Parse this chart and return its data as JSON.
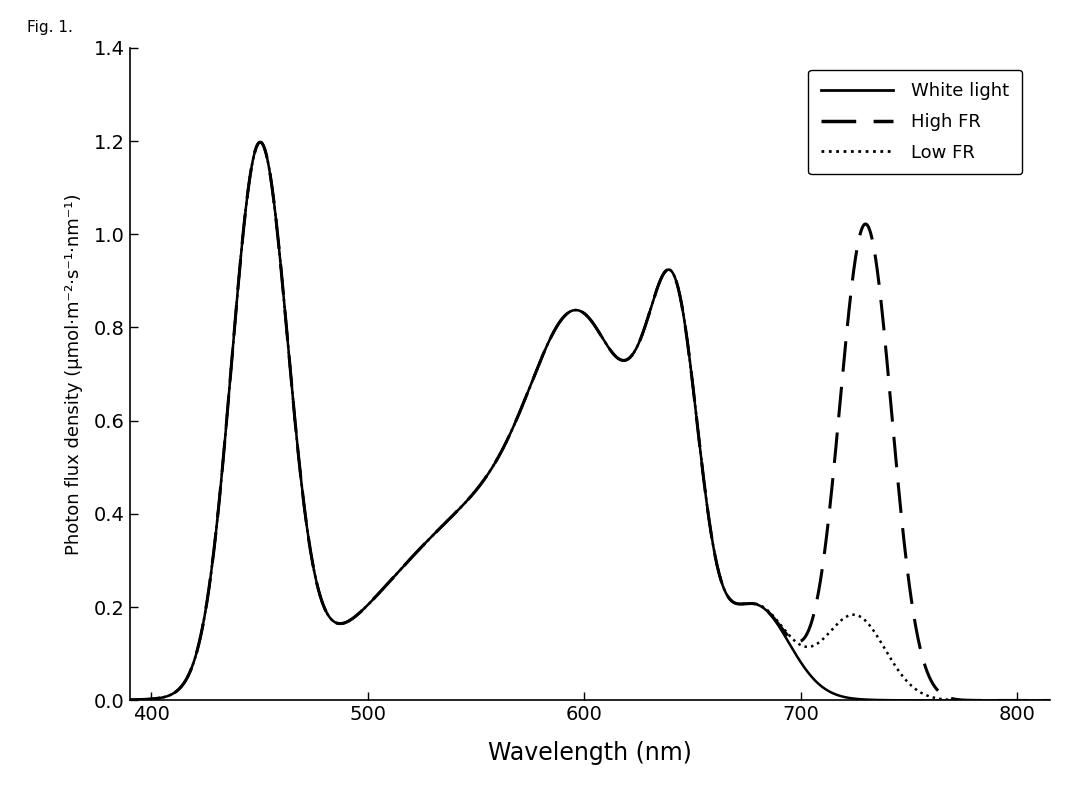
{
  "xlabel": "Wavelength (nm)",
  "ylabel": "Photon flux density (μmol·m⁻²·s⁻¹·nm⁻¹)",
  "xlim": [
    390,
    815
  ],
  "ylim": [
    0,
    1.4
  ],
  "xticks": [
    400,
    500,
    600,
    700,
    800
  ],
  "yticks": [
    0.0,
    0.2,
    0.4,
    0.6,
    0.8,
    1.0,
    1.2,
    1.4
  ],
  "line_color": "#000000",
  "background_color": "#ffffff",
  "legend_labels": [
    "White light",
    "High FR",
    "Low FR"
  ],
  "fig_label": "Fig. 1."
}
